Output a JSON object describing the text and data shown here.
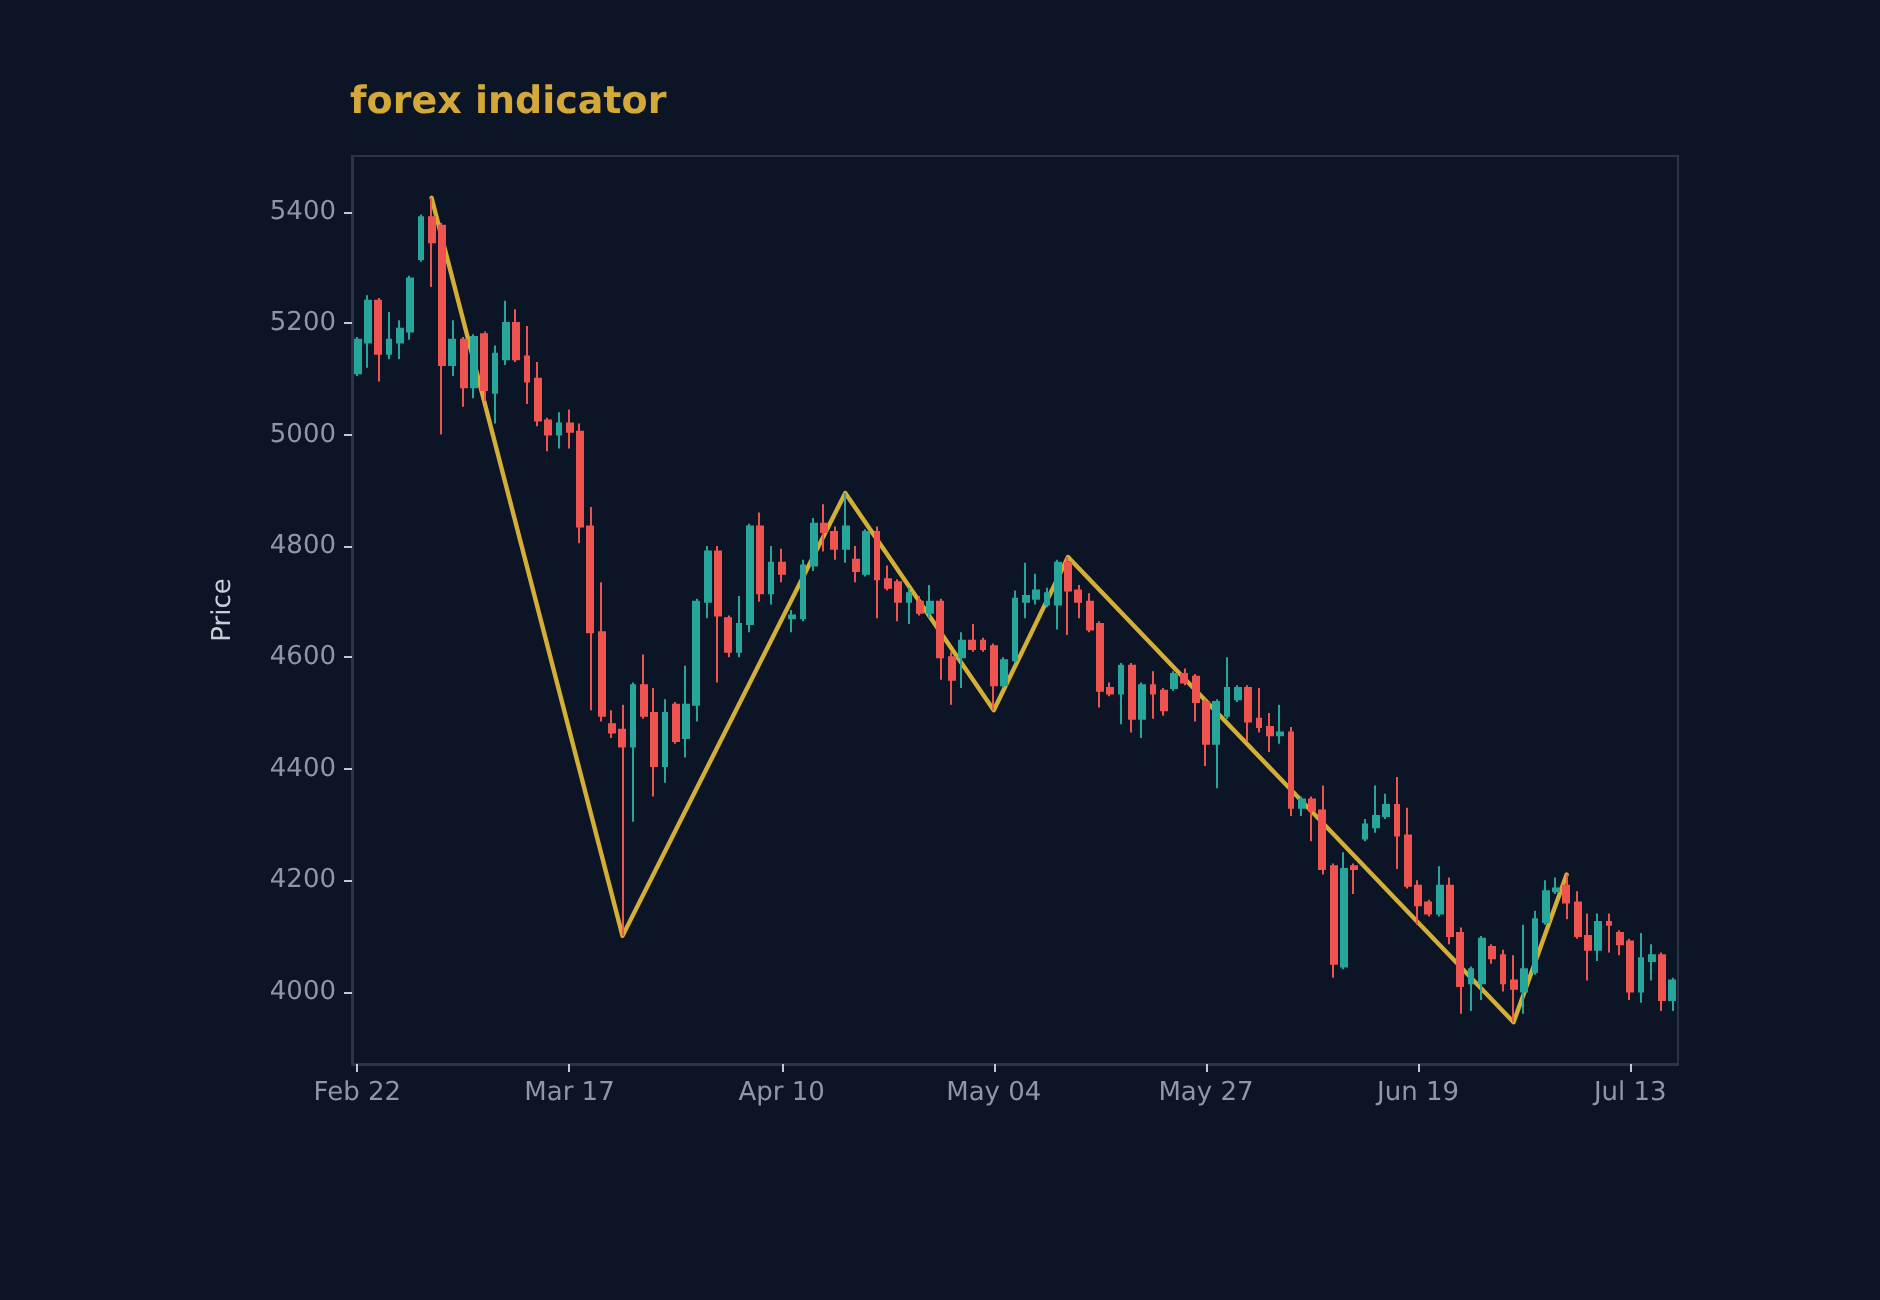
{
  "chart_data": {
    "type": "candlestick",
    "title": "forex indicator",
    "ylabel": "Price",
    "categories": [
      "Feb 22",
      null,
      null,
      null,
      null,
      null,
      null,
      null,
      null,
      null,
      null,
      null,
      null,
      null,
      null,
      null,
      null,
      null,
      null,
      null,
      "Mar 17",
      null,
      null,
      null,
      null,
      null,
      null,
      null,
      null,
      null,
      null,
      null,
      null,
      null,
      null,
      null,
      null,
      null,
      null,
      null,
      "Apr 10",
      null,
      null,
      null,
      null,
      null,
      null,
      null,
      null,
      null,
      null,
      null,
      null,
      null,
      null,
      null,
      null,
      null,
      null,
      null,
      "May 04",
      null,
      null,
      null,
      null,
      null,
      null,
      null,
      null,
      null,
      null,
      null,
      null,
      null,
      null,
      null,
      null,
      null,
      null,
      null,
      "May 27",
      null,
      null,
      null,
      null,
      null,
      null,
      null,
      null,
      null,
      null,
      null,
      null,
      null,
      null,
      null,
      null,
      null,
      null,
      null,
      "Jun 19",
      null,
      null,
      null,
      null,
      null,
      null,
      null,
      null,
      null,
      null,
      null,
      null,
      null,
      null,
      null,
      null,
      null,
      null,
      null,
      "Jul 13",
      null,
      null,
      null,
      null
    ],
    "ohlc": [
      [
        5110,
        5175,
        5105,
        5170
      ],
      [
        5165,
        5250,
        5120,
        5240
      ],
      [
        5240,
        5245,
        5095,
        5145
      ],
      [
        5145,
        5220,
        5135,
        5170
      ],
      [
        5165,
        5205,
        5135,
        5190
      ],
      [
        5185,
        5285,
        5170,
        5280
      ],
      [
        5315,
        5395,
        5310,
        5390
      ],
      [
        5390,
        5425,
        5265,
        5345
      ],
      [
        5375,
        5380,
        5000,
        5125
      ],
      [
        5125,
        5205,
        5105,
        5170
      ],
      [
        5170,
        5175,
        5050,
        5085
      ],
      [
        5085,
        5180,
        5065,
        5175
      ],
      [
        5180,
        5185,
        5060,
        5080
      ],
      [
        5075,
        5160,
        5020,
        5145
      ],
      [
        5135,
        5240,
        5125,
        5200
      ],
      [
        5200,
        5225,
        5130,
        5135
      ],
      [
        5140,
        5195,
        5055,
        5095
      ],
      [
        5100,
        5130,
        5015,
        5025
      ],
      [
        5025,
        5030,
        4970,
        5000
      ],
      [
        5000,
        5040,
        4975,
        5020
      ],
      [
        5020,
        5045,
        4975,
        5005
      ],
      [
        5005,
        5020,
        4805,
        4835
      ],
      [
        4835,
        4870,
        4505,
        4645
      ],
      [
        4645,
        4735,
        4485,
        4495
      ],
      [
        4480,
        4505,
        4455,
        4465
      ],
      [
        4470,
        4515,
        4100,
        4440
      ],
      [
        4440,
        4555,
        4305,
        4550
      ],
      [
        4550,
        4605,
        4490,
        4495
      ],
      [
        4500,
        4545,
        4350,
        4405
      ],
      [
        4405,
        4525,
        4375,
        4500
      ],
      [
        4515,
        4520,
        4445,
        4450
      ],
      [
        4455,
        4585,
        4420,
        4515
      ],
      [
        4515,
        4705,
        4485,
        4700
      ],
      [
        4700,
        4800,
        4670,
        4790
      ],
      [
        4790,
        4800,
        4555,
        4675
      ],
      [
        4670,
        4675,
        4600,
        4610
      ],
      [
        4610,
        4710,
        4600,
        4660
      ],
      [
        4660,
        4840,
        4645,
        4835
      ],
      [
        4835,
        4860,
        4700,
        4715
      ],
      [
        4715,
        4800,
        4695,
        4770
      ],
      [
        4770,
        4795,
        4735,
        4750
      ],
      [
        4670,
        4685,
        4645,
        4675
      ],
      [
        4670,
        4775,
        4665,
        4765
      ],
      [
        4765,
        4850,
        4755,
        4840
      ],
      [
        4840,
        4875,
        4790,
        4825
      ],
      [
        4825,
        4835,
        4775,
        4795
      ],
      [
        4795,
        4895,
        4770,
        4835
      ],
      [
        4775,
        4800,
        4735,
        4755
      ],
      [
        4750,
        4830,
        4745,
        4825
      ],
      [
        4825,
        4835,
        4670,
        4740
      ],
      [
        4740,
        4765,
        4720,
        4725
      ],
      [
        4735,
        4740,
        4665,
        4700
      ],
      [
        4700,
        4725,
        4660,
        4715
      ],
      [
        4700,
        4710,
        4675,
        4680
      ],
      [
        4680,
        4730,
        4670,
        4700
      ],
      [
        4700,
        4705,
        4560,
        4600
      ],
      [
        4600,
        4610,
        4515,
        4560
      ],
      [
        4600,
        4645,
        4545,
        4630
      ],
      [
        4630,
        4660,
        4610,
        4615
      ],
      [
        4630,
        4635,
        4610,
        4615
      ],
      [
        4620,
        4625,
        4505,
        4550
      ],
      [
        4550,
        4600,
        4545,
        4595
      ],
      [
        4595,
        4720,
        4590,
        4705
      ],
      [
        4700,
        4770,
        4670,
        4710
      ],
      [
        4705,
        4750,
        4695,
        4720
      ],
      [
        4695,
        4725,
        4690,
        4715
      ],
      [
        4695,
        4775,
        4650,
        4770
      ],
      [
        4770,
        4780,
        4640,
        4720
      ],
      [
        4720,
        4730,
        4670,
        4700
      ],
      [
        4700,
        4715,
        4645,
        4650
      ],
      [
        4660,
        4665,
        4510,
        4540
      ],
      [
        4545,
        4555,
        4530,
        4535
      ],
      [
        4535,
        4590,
        4480,
        4585
      ],
      [
        4585,
        4590,
        4465,
        4490
      ],
      [
        4490,
        4555,
        4455,
        4550
      ],
      [
        4550,
        4575,
        4490,
        4535
      ],
      [
        4540,
        4545,
        4495,
        4505
      ],
      [
        4545,
        4575,
        4540,
        4570
      ],
      [
        4570,
        4580,
        4550,
        4555
      ],
      [
        4565,
        4570,
        4485,
        4520
      ],
      [
        4520,
        4525,
        4405,
        4445
      ],
      [
        4445,
        4525,
        4365,
        4520
      ],
      [
        4495,
        4600,
        4490,
        4545
      ],
      [
        4525,
        4550,
        4520,
        4545
      ],
      [
        4545,
        4550,
        4450,
        4485
      ],
      [
        4490,
        4545,
        4465,
        4475
      ],
      [
        4475,
        4500,
        4430,
        4460
      ],
      [
        4460,
        4515,
        4445,
        4465
      ],
      [
        4465,
        4475,
        4315,
        4330
      ],
      [
        4330,
        4350,
        4315,
        4345
      ],
      [
        4345,
        4350,
        4270,
        4325
      ],
      [
        4325,
        4370,
        4210,
        4220
      ],
      [
        4225,
        4230,
        4025,
        4050
      ],
      [
        4045,
        4250,
        4040,
        4220
      ],
      [
        4225,
        4230,
        4175,
        4220
      ],
      [
        4275,
        4310,
        4270,
        4300
      ],
      [
        4295,
        4370,
        4285,
        4315
      ],
      [
        4315,
        4355,
        4310,
        4335
      ],
      [
        4335,
        4385,
        4220,
        4280
      ],
      [
        4280,
        4330,
        4185,
        4190
      ],
      [
        4190,
        4200,
        4120,
        4155
      ],
      [
        4160,
        4165,
        4135,
        4140
      ],
      [
        4140,
        4225,
        4135,
        4190
      ],
      [
        4190,
        4205,
        4085,
        4100
      ],
      [
        4105,
        4115,
        3960,
        4010
      ],
      [
        4015,
        4045,
        3965,
        4040
      ],
      [
        4015,
        4100,
        3985,
        4095
      ],
      [
        4080,
        4085,
        4050,
        4060
      ],
      [
        4065,
        4075,
        4000,
        4015
      ],
      [
        4020,
        4065,
        3945,
        4005
      ],
      [
        4000,
        4120,
        3960,
        4040
      ],
      [
        4035,
        4145,
        4030,
        4130
      ],
      [
        4125,
        4200,
        4120,
        4180
      ],
      [
        4180,
        4205,
        4175,
        4185
      ],
      [
        4190,
        4210,
        4130,
        4160
      ],
      [
        4160,
        4180,
        4095,
        4100
      ],
      [
        4100,
        4140,
        4020,
        4075
      ],
      [
        4075,
        4140,
        4055,
        4125
      ],
      [
        4125,
        4140,
        4070,
        4120
      ],
      [
        4105,
        4110,
        4065,
        4085
      ],
      [
        4090,
        4095,
        3985,
        4000
      ],
      [
        4000,
        4105,
        3980,
        4060
      ],
      [
        4055,
        4085,
        4020,
        4065
      ],
      [
        4065,
        4070,
        3965,
        3985
      ],
      [
        3985,
        4025,
        3965,
        4020
      ]
    ],
    "colors": [
      "#26a69a",
      "#26a69a",
      "#ef5350",
      "#26a69a",
      "#26a69a",
      "#26a69a",
      "#26a69a",
      "#ef5350",
      "#ef5350",
      "#26a69a",
      "#ef5350",
      "#26a69a",
      "#ef5350",
      "#26a69a",
      "#26a69a",
      "#ef5350",
      "#ef5350",
      "#ef5350",
      "#ef5350",
      "#26a69a",
      "#ef5350",
      "#ef5350",
      "#ef5350",
      "#ef5350",
      "#ef5350",
      "#ef5350",
      "#26a69a",
      "#ef5350",
      "#ef5350",
      "#26a69a",
      "#ef5350",
      "#26a69a",
      "#26a69a",
      "#26a69a",
      "#ef5350",
      "#ef5350",
      "#26a69a",
      "#26a69a",
      "#ef5350",
      "#26a69a",
      "#ef5350",
      "#26a69a",
      "#26a69a",
      "#26a69a",
      "#ef5350",
      "#ef5350",
      "#26a69a",
      "#ef5350",
      "#26a69a",
      "#ef5350",
      "#ef5350",
      "#ef5350",
      "#26a69a",
      "#ef5350",
      "#26a69a",
      "#ef5350",
      "#ef5350",
      "#26a69a",
      "#ef5350",
      "#ef5350",
      "#ef5350",
      "#26a69a",
      "#26a69a",
      "#26a69a",
      "#26a69a",
      "#26a69a",
      "#26a69a",
      "#ef5350",
      "#ef5350",
      "#ef5350",
      "#ef5350",
      "#ef5350",
      "#26a69a",
      "#ef5350",
      "#26a69a",
      "#ef5350",
      "#ef5350",
      "#26a69a",
      "#ef5350",
      "#ef5350",
      "#ef5350",
      "#26a69a",
      "#26a69a",
      "#26a69a",
      "#ef5350",
      "#ef5350",
      "#ef5350",
      "#26a69a",
      "#ef5350",
      "#26a69a",
      "#ef5350",
      "#ef5350",
      "#ef5350",
      "#26a69a",
      "#ef5350",
      "#26a69a",
      "#26a69a",
      "#26a69a",
      "#ef5350",
      "#ef5350",
      "#ef5350",
      "#ef5350",
      "#26a69a",
      "#ef5350",
      "#ef5350",
      "#26a69a",
      "#26a69a",
      "#ef5350",
      "#ef5350",
      "#ef5350",
      "#26a69a",
      "#26a69a",
      "#26a69a",
      "#26a69a",
      "#ef5350",
      "#ef5350",
      "#ef5350",
      "#26a69a",
      "#ef5350",
      "#ef5350",
      "#ef5350",
      "#26a69a",
      "#26a69a",
      "#ef5350",
      "#26a69a"
    ],
    "series": [
      {
        "type": "line",
        "color": "#d4af37",
        "values": [
          null,
          null,
          null,
          null,
          null,
          null,
          null,
          5425,
          null,
          null,
          null,
          null,
          null,
          null,
          null,
          null,
          null,
          null,
          null,
          null,
          null,
          null,
          null,
          null,
          null,
          4100,
          null,
          null,
          null,
          null,
          null,
          null,
          null,
          null,
          null,
          null,
          null,
          null,
          null,
          null,
          null,
          null,
          null,
          null,
          null,
          null,
          4895,
          null,
          null,
          null,
          null,
          null,
          null,
          null,
          null,
          null,
          null,
          null,
          null,
          null,
          4505,
          null,
          null,
          null,
          null,
          null,
          null,
          4780,
          null,
          null,
          null,
          null,
          null,
          null,
          null,
          null,
          null,
          null,
          null,
          null,
          null,
          null,
          null,
          null,
          null,
          null,
          null,
          null,
          null,
          null,
          null,
          null,
          null,
          null,
          null,
          null,
          null,
          null,
          null,
          null,
          null,
          null,
          null,
          null,
          null,
          null,
          null,
          null,
          null,
          3945,
          null,
          null,
          null,
          null,
          4210,
          null,
          null,
          null,
          null,
          null,
          null,
          null,
          null,
          null,
          null
        ]
      }
    ],
    "ylim": [
      3870,
      5500
    ],
    "yticks": [
      4000,
      4200,
      4400,
      4600,
      4800,
      5000,
      5200,
      5400
    ],
    "grid": false
  }
}
